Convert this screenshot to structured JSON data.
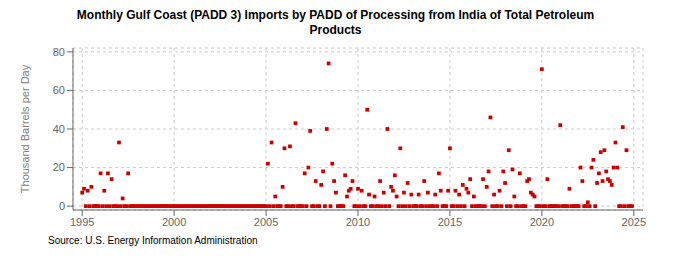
{
  "chart_data": {
    "type": "scatter",
    "title": "Monthly Gulf Coast (PADD 3) Imports by PADD of Processing from India of Total Petroleum\nProducts",
    "ylabel": "Thousand Barrels per Day",
    "annotations": [
      "Source: U.S. Energy Information Administration"
    ],
    "color": "#cc0000",
    "marker": "square",
    "grid": true,
    "xlim": [
      1994.5,
      2025.5
    ],
    "ylim": [
      -2,
      82
    ],
    "xticks": [
      1995,
      2000,
      2005,
      2010,
      2015,
      2020,
      2025
    ],
    "yticks": [
      0,
      20,
      40,
      60,
      80
    ],
    "x": [
      1995.0,
      1995.1,
      1995.2,
      1995.3,
      1995.4,
      1995.5,
      1995.6,
      1995.7,
      1995.8,
      1995.9,
      1996.0,
      1996.1,
      1996.2,
      1996.3,
      1996.4,
      1996.5,
      1996.6,
      1996.7,
      1996.8,
      1996.9,
      1997.0,
      1997.1,
      1997.2,
      1997.3,
      1997.4,
      1997.5,
      1997.6,
      1997.7,
      1997.8,
      1997.9,
      1998.0,
      1998.1,
      1998.2,
      1998.3,
      1998.4,
      1998.5,
      1998.6,
      1998.7,
      1998.8,
      1998.9,
      1999.0,
      1999.1,
      1999.2,
      1999.3,
      1999.4,
      1999.5,
      1999.6,
      1999.7,
      1999.8,
      1999.9,
      2000.0,
      2000.1,
      2000.2,
      2000.3,
      2000.4,
      2000.5,
      2000.6,
      2000.7,
      2000.8,
      2000.9,
      2001.0,
      2001.1,
      2001.2,
      2001.3,
      2001.4,
      2001.5,
      2001.6,
      2001.7,
      2001.8,
      2001.9,
      2002.0,
      2002.1,
      2002.2,
      2002.3,
      2002.4,
      2002.5,
      2002.6,
      2002.7,
      2002.8,
      2002.9,
      2003.0,
      2003.1,
      2003.2,
      2003.3,
      2003.4,
      2003.5,
      2003.6,
      2003.7,
      2003.8,
      2003.9,
      2004.0,
      2004.1,
      2004.2,
      2004.3,
      2004.4,
      2004.5,
      2004.6,
      2004.7,
      2004.8,
      2004.9,
      2005.0,
      2005.1,
      2005.2,
      2005.3,
      2005.4,
      2005.5,
      2005.6,
      2005.7,
      2005.8,
      2005.9,
      2006.0,
      2006.1,
      2006.2,
      2006.3,
      2006.4,
      2006.5,
      2006.6,
      2006.7,
      2006.8,
      2006.9,
      2007.0,
      2007.1,
      2007.2,
      2007.3,
      2007.4,
      2007.5,
      2007.6,
      2007.7,
      2007.8,
      2007.9,
      2008.0,
      2008.1,
      2008.2,
      2008.3,
      2008.4,
      2008.5,
      2008.6,
      2008.7,
      2008.8,
      2008.9,
      2009.0,
      2009.1,
      2009.2,
      2009.3,
      2009.4,
      2009.5,
      2009.6,
      2009.7,
      2009.8,
      2009.9,
      2010.0,
      2010.1,
      2010.2,
      2010.3,
      2010.4,
      2010.5,
      2010.6,
      2010.7,
      2010.8,
      2010.9,
      2011.0,
      2011.1,
      2011.2,
      2011.3,
      2011.4,
      2011.5,
      2011.6,
      2011.7,
      2011.8,
      2011.9,
      2012.0,
      2012.1,
      2012.2,
      2012.3,
      2012.4,
      2012.5,
      2012.6,
      2012.7,
      2012.8,
      2012.9,
      2013.0,
      2013.1,
      2013.2,
      2013.3,
      2013.4,
      2013.5,
      2013.6,
      2013.7,
      2013.8,
      2013.9,
      2014.0,
      2014.1,
      2014.2,
      2014.3,
      2014.4,
      2014.5,
      2014.6,
      2014.7,
      2014.8,
      2014.9,
      2015.0,
      2015.1,
      2015.2,
      2015.3,
      2015.4,
      2015.5,
      2015.6,
      2015.7,
      2015.8,
      2015.9,
      2016.0,
      2016.1,
      2016.2,
      2016.3,
      2016.4,
      2016.5,
      2016.6,
      2016.7,
      2016.8,
      2016.9,
      2017.0,
      2017.1,
      2017.2,
      2017.3,
      2017.4,
      2017.5,
      2017.6,
      2017.7,
      2017.8,
      2017.9,
      2018.0,
      2018.1,
      2018.2,
      2018.3,
      2018.4,
      2018.5,
      2018.6,
      2018.7,
      2018.8,
      2018.9,
      2019.0,
      2019.1,
      2019.2,
      2019.3,
      2019.4,
      2019.5,
      2019.6,
      2019.7,
      2019.8,
      2019.9,
      2020.0,
      2020.1,
      2020.2,
      2020.3,
      2020.4,
      2020.5,
      2020.6,
      2020.7,
      2020.8,
      2020.9,
      2021.0,
      2021.1,
      2021.2,
      2021.3,
      2021.4,
      2021.5,
      2021.6,
      2021.7,
      2021.8,
      2021.9,
      2022.0,
      2022.1,
      2022.2,
      2022.3,
      2022.4,
      2022.5,
      2022.6,
      2022.7,
      2022.8,
      2022.9,
      2023.0,
      2023.1,
      2023.2,
      2023.3,
      2023.4,
      2023.5,
      2023.6,
      2023.7,
      2023.8,
      2023.9,
      2024.0,
      2024.1,
      2024.2,
      2024.3,
      2024.4,
      2024.5,
      2024.6,
      2024.7,
      2024.8,
      2024.9
    ],
    "values": [
      7,
      9,
      0,
      8,
      0,
      10,
      0,
      0,
      0,
      0,
      17,
      0,
      8,
      0,
      17,
      0,
      14,
      0,
      0,
      0,
      33,
      0,
      4,
      0,
      0,
      17,
      0,
      0,
      0,
      0,
      0,
      0,
      0,
      0,
      0,
      0,
      0,
      0,
      0,
      0,
      0,
      0,
      0,
      0,
      0,
      0,
      0,
      0,
      0,
      0,
      0,
      0,
      0,
      0,
      0,
      0,
      0,
      0,
      0,
      0,
      0,
      0,
      0,
      0,
      0,
      0,
      0,
      0,
      0,
      0,
      0,
      0,
      0,
      0,
      0,
      0,
      0,
      0,
      0,
      0,
      0,
      0,
      0,
      0,
      0,
      0,
      0,
      0,
      0,
      0,
      0,
      0,
      0,
      0,
      0,
      0,
      0,
      0,
      0,
      0,
      0,
      22,
      0,
      33,
      0,
      5,
      0,
      0,
      0,
      10,
      30,
      0,
      0,
      31,
      0,
      0,
      43,
      0,
      0,
      0,
      0,
      17,
      0,
      20,
      39,
      0,
      0,
      13,
      0,
      0,
      11,
      18,
      0,
      40,
      74,
      0,
      22,
      13,
      7,
      0,
      0,
      0,
      0,
      16,
      5,
      8,
      9,
      13,
      0,
      0,
      9,
      0,
      8,
      0,
      0,
      50,
      6,
      0,
      0,
      5,
      0,
      0,
      13,
      0,
      7,
      0,
      40,
      0,
      10,
      8,
      16,
      5,
      0,
      30,
      0,
      7,
      0,
      12,
      0,
      6,
      0,
      0,
      0,
      6,
      0,
      0,
      13,
      0,
      7,
      0,
      0,
      0,
      6,
      0,
      17,
      8,
      0,
      0,
      0,
      8,
      30,
      0,
      0,
      8,
      0,
      6,
      0,
      11,
      0,
      9,
      7,
      14,
      0,
      5,
      0,
      0,
      0,
      0,
      14,
      0,
      10,
      18,
      46,
      0,
      6,
      0,
      0,
      8,
      0,
      18,
      12,
      0,
      29,
      0,
      19,
      5,
      0,
      0,
      17,
      0,
      0,
      0,
      13,
      14,
      7,
      6,
      5,
      0,
      0,
      0,
      71,
      0,
      0,
      14,
      0,
      0,
      0,
      0,
      0,
      0,
      42,
      0,
      0,
      0,
      0,
      9,
      0,
      0,
      0,
      0,
      0,
      20,
      13,
      0,
      0,
      2,
      0,
      20,
      24,
      0,
      12,
      17,
      28,
      13,
      29,
      18,
      14,
      13,
      11,
      20,
      33,
      20,
      0,
      0,
      41,
      0,
      29,
      0,
      0,
      0
    ]
  }
}
